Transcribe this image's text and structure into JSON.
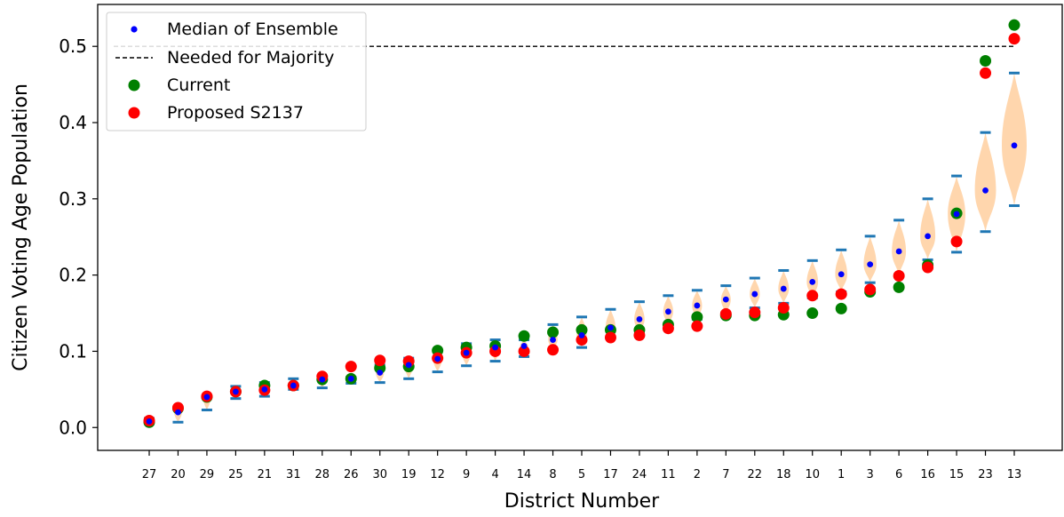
{
  "chart_data": {
    "type": "scatter",
    "xlabel": "District Number",
    "ylabel": "Citizen Voting Age Population",
    "ylim": [
      -0.03,
      0.555
    ],
    "yticks": [
      0.0,
      0.1,
      0.2,
      0.3,
      0.4,
      0.5
    ],
    "ytick_labels": [
      "0.0",
      "0.1",
      "0.2",
      "0.3",
      "0.4",
      "0.5"
    ],
    "majority_threshold": 0.5,
    "categories": [
      "27",
      "20",
      "29",
      "25",
      "21",
      "31",
      "28",
      "26",
      "30",
      "19",
      "12",
      "9",
      "4",
      "14",
      "8",
      "5",
      "17",
      "24",
      "11",
      "2",
      "7",
      "22",
      "18",
      "10",
      "1",
      "3",
      "6",
      "16",
      "15",
      "23",
      "13"
    ],
    "legend_position": "upper-left",
    "legend": [
      {
        "label": "Median of Ensemble",
        "color": "#0000ff",
        "kind": "small-dot"
      },
      {
        "label": "Needed for Majority",
        "color": "#000000",
        "kind": "dashed-line"
      },
      {
        "label": "Current",
        "color": "#008000",
        "kind": "dot"
      },
      {
        "label": "Proposed S2137",
        "color": "#ff0000",
        "kind": "dot"
      }
    ],
    "violin_color": "#ffcc99",
    "extrema_color": "#1f77b4",
    "series": [
      {
        "name": "Median of Ensemble",
        "values": [
          0.008,
          0.02,
          0.04,
          0.047,
          0.05,
          0.055,
          0.063,
          0.064,
          0.072,
          0.082,
          0.09,
          0.098,
          0.105,
          0.107,
          0.115,
          0.121,
          0.131,
          0.142,
          0.152,
          0.16,
          0.168,
          0.175,
          0.182,
          0.191,
          0.201,
          0.214,
          0.231,
          0.251,
          0.28,
          0.311,
          0.37
        ]
      },
      {
        "name": "Current",
        "values": [
          0.007,
          0.025,
          0.04,
          0.047,
          0.055,
          0.055,
          0.063,
          0.064,
          0.078,
          0.08,
          0.101,
          0.105,
          0.107,
          0.12,
          0.125,
          0.128,
          0.128,
          0.128,
          0.135,
          0.145,
          0.147,
          0.147,
          0.148,
          0.15,
          0.156,
          0.178,
          0.184,
          0.213,
          0.281,
          0.481,
          0.528
        ]
      },
      {
        "name": "Proposed S2137",
        "values": [
          0.009,
          0.026,
          0.041,
          0.047,
          0.049,
          0.055,
          0.067,
          0.08,
          0.088,
          0.087,
          0.091,
          0.098,
          0.1,
          0.1,
          0.102,
          0.115,
          0.118,
          0.121,
          0.13,
          0.133,
          0.149,
          0.151,
          0.157,
          0.173,
          0.175,
          0.181,
          0.199,
          0.21,
          0.244,
          0.465,
          0.51
        ]
      }
    ],
    "ensemble_min": [
      0.005,
      0.007,
      0.023,
      0.038,
      0.041,
      0.05,
      0.052,
      0.058,
      0.059,
      0.064,
      0.073,
      0.081,
      0.087,
      0.093,
      0.102,
      0.105,
      0.117,
      0.124,
      0.135,
      0.142,
      0.15,
      0.157,
      0.163,
      0.17,
      0.178,
      0.19,
      0.2,
      0.22,
      0.23,
      0.257,
      0.291
    ],
    "ensemble_max": [
      0.012,
      0.026,
      0.041,
      0.054,
      0.059,
      0.064,
      0.068,
      0.066,
      0.082,
      0.091,
      0.102,
      0.11,
      0.115,
      0.115,
      0.135,
      0.145,
      0.155,
      0.165,
      0.173,
      0.18,
      0.186,
      0.196,
      0.206,
      0.219,
      0.233,
      0.251,
      0.272,
      0.3,
      0.33,
      0.387,
      0.465
    ]
  }
}
